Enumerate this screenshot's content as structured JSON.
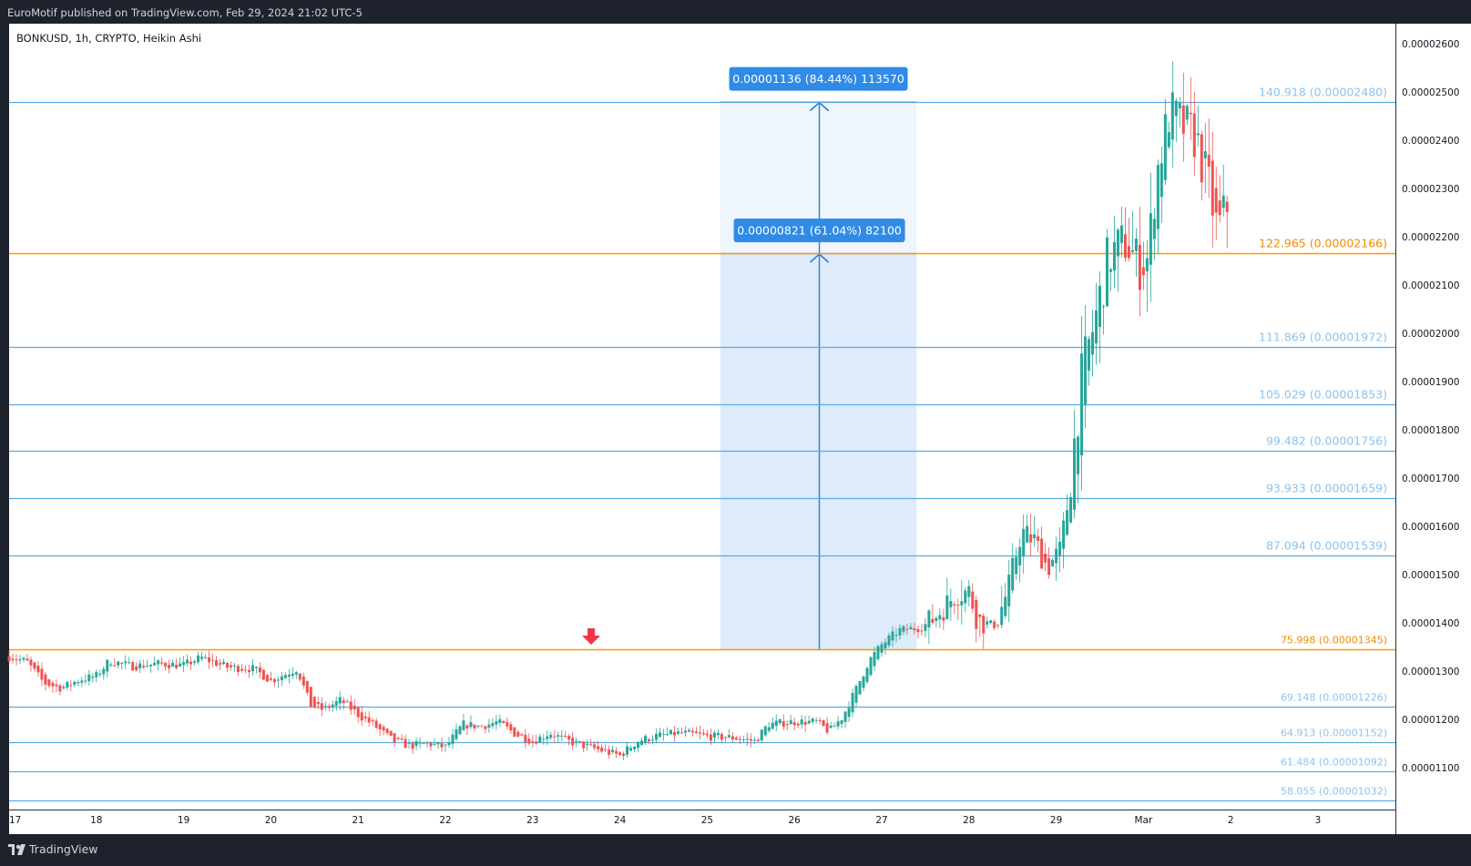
{
  "header": {
    "published": "EuroMotif published on TradingView.com, Feb 29, 2024 21:02 UTC-5",
    "symbol_line": "BONKUSD, 1h, CRYPTO, Heikin Ashi"
  },
  "footer": {
    "brand": "TradingView"
  },
  "colors": {
    "up": "#26a69a",
    "down": "#ef5350",
    "fib_blue": "#5aabe6",
    "fib_orange": "#ff9800",
    "measure_fill": "#deebfa",
    "measure_line": "#2a7fd4",
    "label_bg": "#2f8be6",
    "arrow": "#f23645"
  },
  "chart_data": {
    "type": "candlestick",
    "symbol": "BONKUSD",
    "interval": "1h",
    "style": "Heikin Ashi",
    "y_axis": {
      "ticks": [
        "0.00001100",
        "0.00001200",
        "0.00001300",
        "0.00001400",
        "0.00001500",
        "0.00001600",
        "0.00001700",
        "0.00001800",
        "0.00001900",
        "0.00002000",
        "0.00002100",
        "0.00002200",
        "0.00002300",
        "0.00002400",
        "0.00002500",
        "0.00002600"
      ],
      "range": [
        1.02e-05,
        2.63e-05
      ]
    },
    "x_axis": {
      "ticks": [
        "17",
        "18",
        "19",
        "20",
        "21",
        "22",
        "23",
        "24",
        "25",
        "26",
        "27",
        "28",
        "29",
        "Mar",
        "2",
        "3"
      ],
      "range_days": [
        17,
        34.8
      ]
    },
    "fib_levels": [
      {
        "label": "140.918 (0.00002480)",
        "price": 2.48e-05,
        "color": "blue",
        "size": "large"
      },
      {
        "label": "122.965 (0.00002166)",
        "price": 2.166e-05,
        "color": "orange",
        "size": "large"
      },
      {
        "label": "111.869 (0.00001972)",
        "price": 1.972e-05,
        "color": "blue",
        "size": "large"
      },
      {
        "label": "105.029 (0.00001853)",
        "price": 1.853e-05,
        "color": "blue",
        "size": "large"
      },
      {
        "label": "99.482 (0.00001756)",
        "price": 1.756e-05,
        "color": "blue",
        "size": "large"
      },
      {
        "label": "93.933 (0.00001659)",
        "price": 1.659e-05,
        "color": "blue",
        "size": "large"
      },
      {
        "label": "87.094 (0.00001539)",
        "price": 1.539e-05,
        "color": "blue",
        "size": "large"
      },
      {
        "label": "75.998 (0.00001345)",
        "price": 1.345e-05,
        "color": "orange",
        "size": "small"
      },
      {
        "label": "69.148 (0.00001226)",
        "price": 1.226e-05,
        "color": "blue",
        "size": "small"
      },
      {
        "label": "64.913 (0.00001152)",
        "price": 1.152e-05,
        "color": "blue",
        "size": "small"
      },
      {
        "label": "61.484 (0.00001092)",
        "price": 1.092e-05,
        "color": "blue",
        "size": "small"
      },
      {
        "label": "58.055 (0.00001032)",
        "price": 1.032e-05,
        "color": "blue",
        "size": "small"
      }
    ],
    "measurements": [
      {
        "label": "0.00001136 (84.44%) 113570",
        "from_price": 1.345e-05,
        "to_price": 2.48e-05,
        "from_day": 25.15,
        "to_day": 27.4
      },
      {
        "label": "0.00000821 (61.04%) 82100",
        "from_price": 1.345e-05,
        "to_price": 2.166e-05,
        "from_day": 25.15,
        "to_day": 27.4
      }
    ],
    "signal_arrow": {
      "direction": "down",
      "day": 23.65,
      "price": 1.35e-05
    },
    "price_path_key_points": [
      [
        17.0,
        13.3
      ],
      [
        17.2,
        13.2
      ],
      [
        17.4,
        12.75
      ],
      [
        17.6,
        12.65
      ],
      [
        17.8,
        12.82
      ],
      [
        18.0,
        12.9
      ],
      [
        18.15,
        13.22
      ],
      [
        18.4,
        13.1
      ],
      [
        18.7,
        13.15
      ],
      [
        19.0,
        13.12
      ],
      [
        19.2,
        13.28
      ],
      [
        19.5,
        13.08
      ],
      [
        19.8,
        13.05
      ],
      [
        20.0,
        12.8
      ],
      [
        20.3,
        13.05
      ],
      [
        20.45,
        12.3
      ],
      [
        20.6,
        12.2
      ],
      [
        20.8,
        12.4
      ],
      [
        21.0,
        12.1
      ],
      [
        21.2,
        11.85
      ],
      [
        21.4,
        11.55
      ],
      [
        21.6,
        11.45
      ],
      [
        21.8,
        11.5
      ],
      [
        22.0,
        11.42
      ],
      [
        22.2,
        11.9
      ],
      [
        22.4,
        11.85
      ],
      [
        22.6,
        11.95
      ],
      [
        22.8,
        11.7
      ],
      [
        23.0,
        11.55
      ],
      [
        23.2,
        11.72
      ],
      [
        23.4,
        11.55
      ],
      [
        23.6,
        11.45
      ],
      [
        23.8,
        11.35
      ],
      [
        24.0,
        11.25
      ],
      [
        24.2,
        11.55
      ],
      [
        24.4,
        11.65
      ],
      [
        24.7,
        11.72
      ],
      [
        25.0,
        11.65
      ],
      [
        25.3,
        11.62
      ],
      [
        25.55,
        11.55
      ],
      [
        25.7,
        11.9
      ],
      [
        26.0,
        11.95
      ],
      [
        26.25,
        11.95
      ],
      [
        26.4,
        11.75
      ],
      [
        26.55,
        12.05
      ],
      [
        26.7,
        12.6
      ],
      [
        26.85,
        13.2
      ],
      [
        27.0,
        13.55
      ],
      [
        27.2,
        13.85
      ],
      [
        27.45,
        13.9
      ],
      [
        27.6,
        14.1
      ],
      [
        27.85,
        14.6
      ],
      [
        28.0,
        14.65
      ],
      [
        28.1,
        14.05
      ],
      [
        28.3,
        13.95
      ],
      [
        28.45,
        14.7
      ],
      [
        28.6,
        15.9
      ],
      [
        28.75,
        15.7
      ],
      [
        28.9,
        15.15
      ],
      [
        29.05,
        15.5
      ],
      [
        29.15,
        16.8
      ],
      [
        29.3,
        19.2
      ],
      [
        29.45,
        20.3
      ],
      [
        29.6,
        21.6
      ],
      [
        29.8,
        21.9
      ],
      [
        29.95,
        21.4
      ],
      [
        30.05,
        21.55
      ],
      [
        30.15,
        23.3
      ],
      [
        30.3,
        24.6
      ],
      [
        30.45,
        24.3
      ],
      [
        30.6,
        24.05
      ],
      [
        30.75,
        23.0
      ],
      [
        30.85,
        22.1
      ],
      [
        30.95,
        22.6
      ],
      [
        31.0,
        22.9
      ]
    ]
  }
}
